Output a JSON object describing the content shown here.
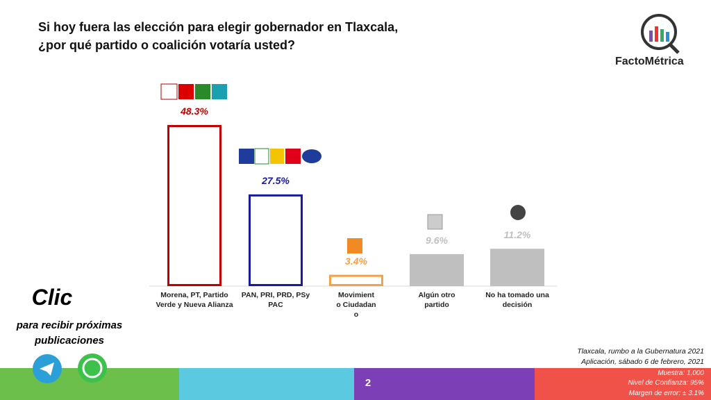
{
  "header": {
    "title_lines": [
      "Si hoy fuera las elección para elegir gobernador en Tlaxcala,",
      "¿por qué  partido o coalición votaría usted?"
    ],
    "brand": "FactoMétrica"
  },
  "chart_data": {
    "type": "bar",
    "categories": [
      "Morena, PT, Partido Verde y Nueva Alianza",
      "PAN, PRI, PRD, PSy PAC",
      "Movimiento Ciudadano",
      "Algún otro partido",
      "No ha tomado una decisión"
    ],
    "values": [
      48.3,
      27.5,
      3.4,
      9.6,
      11.2
    ],
    "value_labels": [
      "48.3%",
      "27.5%",
      "3.4%",
      "9.6%",
      "11.2%"
    ],
    "colors": [
      "#c00000",
      "#1a1a9c",
      "#f5a04a",
      "#bfbfbf",
      "#bfbfbf"
    ],
    "filled": [
      false,
      false,
      false,
      true,
      true
    ]
  },
  "cta": {
    "title": "Clic",
    "text": "para recibir próximas publicaciones"
  },
  "footer": {
    "notes": [
      "Tlaxcala, rumbo a la Gubernatura 2021",
      "Aplicación, sábado 6 de febrero, 2021"
    ],
    "stats": [
      "Muestra:  1,000",
      "Nivel de Confianza:  95%",
      "Margen de error: ± 3.1%"
    ],
    "page": "2"
  }
}
